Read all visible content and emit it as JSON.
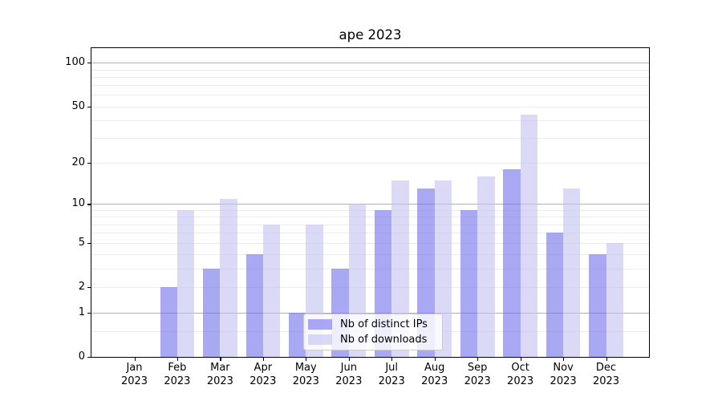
{
  "chart_data": {
    "type": "bar",
    "title": "ape 2023",
    "scale": "log1p",
    "categories": [
      "Jan",
      "Feb",
      "Mar",
      "Apr",
      "May",
      "Jun",
      "Jul",
      "Aug",
      "Sep",
      "Oct",
      "Nov",
      "Dec"
    ],
    "year_label": "2023",
    "series": [
      {
        "name": "Nb of distinct IPs",
        "values": [
          0,
          2,
          3,
          4,
          1,
          3,
          9,
          13,
          9,
          18,
          6,
          4
        ],
        "color": "#a9a9f3"
      },
      {
        "name": "Nb of downloads",
        "values": [
          0,
          9,
          11,
          7,
          7,
          10,
          15,
          15,
          16,
          44,
          13,
          5
        ],
        "color": "#dadaf7"
      }
    ],
    "yticks": [
      0,
      1,
      2,
      5,
      10,
      20,
      50,
      100
    ],
    "major_gridlines": [
      1,
      10,
      100
    ],
    "minor_gridlines": [
      0.5,
      2,
      3,
      4,
      5,
      6,
      7,
      8,
      9,
      20,
      30,
      40,
      50,
      60,
      70,
      80,
      90
    ],
    "ylim": [
      0,
      126
    ],
    "grid": true,
    "legend_position": "lower-center"
  },
  "colors": {
    "bar_distinct_ips": "#a9a9f3",
    "bar_downloads": "#dadaf7",
    "major_grid": "#b0b0b0",
    "minor_grid": "#ececec",
    "frame": "#000000"
  }
}
